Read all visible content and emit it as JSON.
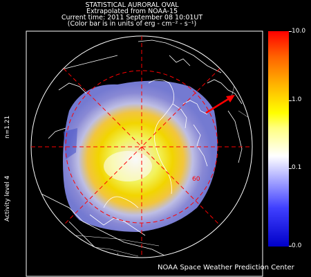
{
  "header": {
    "line1": "STATISTICAL AURORAL OVAL",
    "line2": "Extrapolated from NOAA-15",
    "line3": "Current time: 2011 September 08 10:01UT",
    "line4": "(Color bar is in units of erg - cm⁻² - s⁻¹)"
  },
  "side_labels": {
    "n_value": "n=1.21",
    "activity": "Activity level 4"
  },
  "map": {
    "latitude_label": "60",
    "colors": {
      "graticule": "#ff0000",
      "sun_arrow": "#ff0000",
      "coastline": "#ffffff",
      "frame": "#ffffff"
    }
  },
  "colorbar": {
    "ticks": [
      "10.0",
      "1.0",
      "0.1",
      "0.0"
    ],
    "colors": [
      "#0000c8",
      "#4040ff",
      "#c8c8ff",
      "#ffffff",
      "#ffff80",
      "#ffff00",
      "#ffb400",
      "#ff6400",
      "#ff0000"
    ]
  },
  "footer": {
    "credit": "NOAA Space Weather Prediction Center"
  }
}
